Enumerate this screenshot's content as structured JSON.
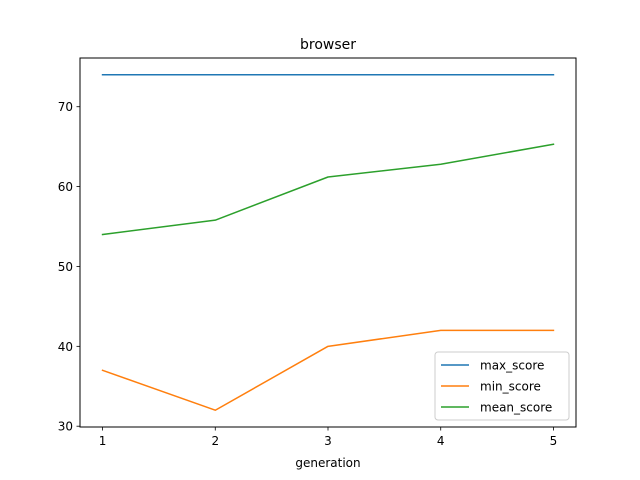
{
  "chart_data": {
    "type": "line",
    "title": "browser",
    "xlabel": "generation",
    "ylabel": "",
    "x": [
      1,
      2,
      3,
      4,
      5
    ],
    "xticks": [
      1,
      2,
      3,
      4,
      5
    ],
    "yticks": [
      30,
      40,
      50,
      60,
      70
    ],
    "xlim": [
      0.8,
      5.2
    ],
    "ylim": [
      29.9,
      76.1
    ],
    "grid": false,
    "legend_position": "lower-right",
    "series": [
      {
        "name": "max_score",
        "values": [
          74,
          74,
          74,
          74,
          74
        ],
        "color": "#1f77b4"
      },
      {
        "name": "min_score",
        "values": [
          37,
          32,
          40,
          42,
          42
        ],
        "color": "#ff7f0e"
      },
      {
        "name": "mean_score",
        "values": [
          54.0,
          55.8,
          61.2,
          62.8,
          65.3
        ],
        "color": "#2ca02c"
      }
    ]
  }
}
